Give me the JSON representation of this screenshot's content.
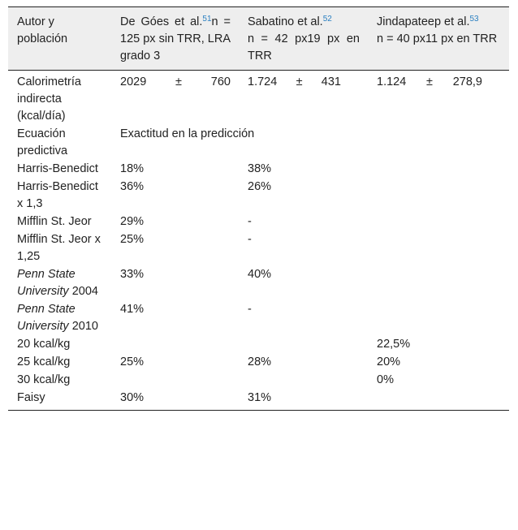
{
  "header": {
    "col0": "Autor y población",
    "col1": {
      "author": "De Góes et al.",
      "ref": "51",
      "detail": "n = 125 px sin TRR, LRA grado 3"
    },
    "col2": {
      "author": "Sabatino et al.",
      "ref": "52",
      "detail": "n = 42 px19 px en TRR"
    },
    "col3": {
      "author": "Jindapateep et al.",
      "ref": "53",
      "detail": "n = 40 px11 px en TRR"
    }
  },
  "calorimetry": {
    "label": "Calorimetría indirecta (kcal/día)",
    "c1": {
      "mean": "2029",
      "pm": "±",
      "sd": "760"
    },
    "c2": {
      "mean": "1.724",
      "pm": "±",
      "sd": "431"
    },
    "c3": {
      "mean": "1.124",
      "pm": "±",
      "sd": "278,9"
    }
  },
  "predictive": {
    "label": "Ecuación predictiva",
    "span_text": "Exactitud en la predicción"
  },
  "rows": [
    {
      "label": "Harris-Benedict",
      "italic": false,
      "c1": "18%",
      "c2": "38%",
      "c3": ""
    },
    {
      "label": "Harris-Benedict x 1,3",
      "italic": false,
      "c1": "36%",
      "c2": "26%",
      "c3": ""
    },
    {
      "label": "Mifflin St. Jeor",
      "italic": false,
      "c1": "29%",
      "c2": "-",
      "c3": ""
    },
    {
      "label": "Mifflin St. Jeor x 1,25",
      "italic": false,
      "c1": "25%",
      "c2": "-",
      "c3": ""
    },
    {
      "label": "Penn State University",
      "suffix": "2004",
      "italic": true,
      "c1": "33%",
      "c2": "40%",
      "c3": ""
    },
    {
      "label": "Penn State University",
      "suffix": "2010",
      "italic": true,
      "c1": "41%",
      "c2": "-",
      "c3": ""
    },
    {
      "label": "20 kcal/kg",
      "italic": false,
      "c1": "",
      "c2": "",
      "c3": "22,5%"
    },
    {
      "label": "25 kcal/kg",
      "italic": false,
      "c1": "25%",
      "c2": "28%",
      "c3": "20%"
    },
    {
      "label": "30 kcal/kg",
      "italic": false,
      "c1": "",
      "c2": "",
      "c3": "0%"
    },
    {
      "label": "Faisy",
      "italic": false,
      "c1": "30%",
      "c2": "31%",
      "c3": ""
    }
  ]
}
